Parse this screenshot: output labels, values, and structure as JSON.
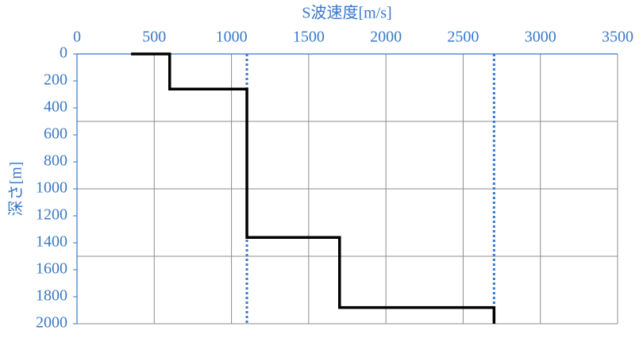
{
  "chart_data": {
    "type": "line",
    "x_label": "S波速度[m/s]",
    "y_label": "深さ[m]",
    "series": [
      {
        "color": "#000000",
        "x": [
          350,
          600,
          600,
          1100,
          1100,
          1700,
          1700,
          2700,
          2700
        ],
        "values": [
          0,
          0,
          260,
          260,
          1360,
          1360,
          1880,
          1880,
          2000
        ]
      }
    ],
    "reference_lines": [
      {
        "x": 1100,
        "color": "#3a78c8"
      },
      {
        "x": 2700,
        "color": "#3a78c8"
      }
    ],
    "xlim": [
      0,
      3500
    ],
    "xticks": [
      0,
      500,
      1000,
      1500,
      2000,
      2500,
      3000,
      3500
    ],
    "ylim": [
      0,
      2000
    ],
    "yticks": [
      0,
      200,
      400,
      600,
      800,
      1000,
      1200,
      1400,
      1600,
      1800,
      2000
    ],
    "y_gridlines": [
      500,
      1000,
      1500,
      2000
    ],
    "y_inverted": true,
    "x_axis_position": "top",
    "grid": true
  }
}
